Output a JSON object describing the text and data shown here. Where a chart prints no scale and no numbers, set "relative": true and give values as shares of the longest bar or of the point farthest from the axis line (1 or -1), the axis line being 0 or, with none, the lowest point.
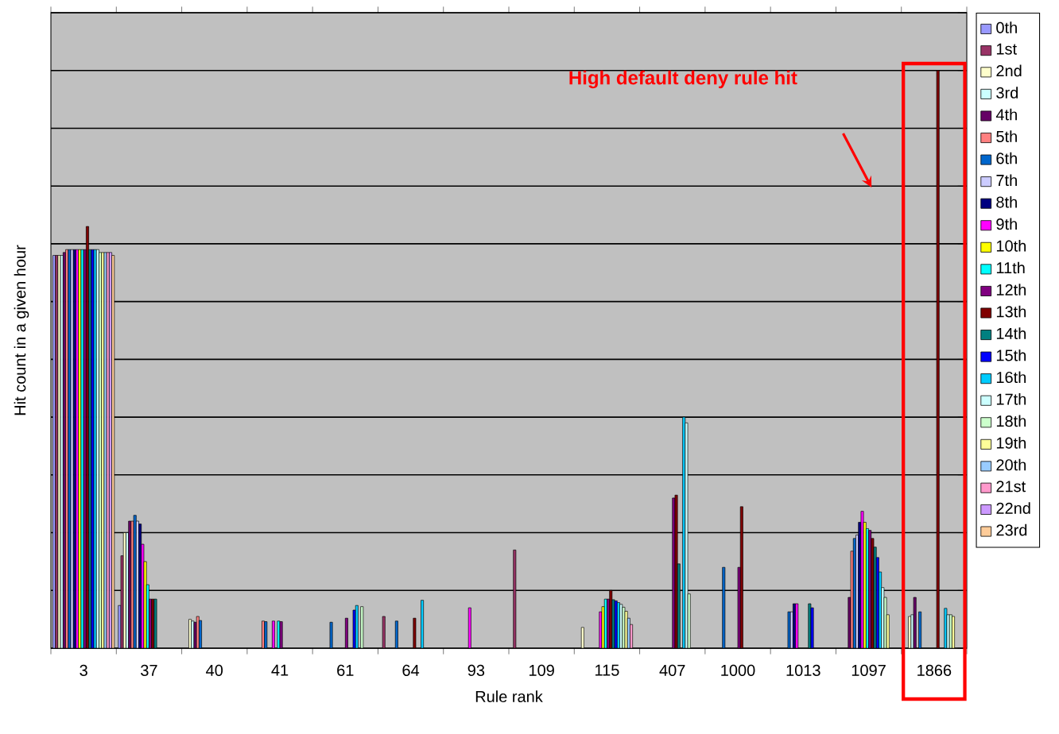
{
  "chart_data": {
    "type": "bar",
    "relative": true,
    "grid": "y",
    "legend": "right",
    "xlabel": "Rule rank",
    "ylabel": "Hit count in a given hour",
    "annotations": [
      "High default deny rule hit"
    ],
    "categories": [
      "3",
      "37",
      "40",
      "41",
      "61",
      "64",
      "93",
      "109",
      "115",
      "407",
      "1000",
      "1013",
      "1097",
      "1866"
    ],
    "series": [
      {
        "name": "0th",
        "color": "#9999ff",
        "values": [
          0.68,
          0.074,
          null,
          null,
          null,
          null,
          null,
          null,
          null,
          null,
          null,
          null,
          null,
          null
        ]
      },
      {
        "name": "1st",
        "color": "#993366",
        "values": [
          0.68,
          0.16,
          null,
          null,
          null,
          0.055,
          null,
          0.17,
          null,
          null,
          null,
          null,
          null,
          null
        ]
      },
      {
        "name": "2nd",
        "color": "#ffffcc",
        "values": [
          0.68,
          0.2,
          0.05,
          null,
          null,
          null,
          null,
          null,
          0.036,
          null,
          null,
          null,
          null,
          0.055
        ]
      },
      {
        "name": "3rd",
        "color": "#ccffff",
        "values": [
          0.68,
          0.2,
          0.047,
          null,
          null,
          null,
          null,
          null,
          null,
          null,
          null,
          null,
          null,
          0.058
        ]
      },
      {
        "name": "4th",
        "color": "#660066",
        "values": [
          0.685,
          0.22,
          0.045,
          null,
          null,
          null,
          null,
          null,
          null,
          null,
          null,
          null,
          0.088,
          0.088
        ]
      },
      {
        "name": "5th",
        "color": "#ff8080",
        "values": [
          0.69,
          0.22,
          0.055,
          0.047,
          null,
          null,
          null,
          null,
          null,
          null,
          null,
          null,
          0.168,
          null
        ]
      },
      {
        "name": "6th",
        "color": "#0066cc",
        "values": [
          0.69,
          0.23,
          0.048,
          0.046,
          0.045,
          0.047,
          null,
          null,
          null,
          null,
          0.14,
          0.063,
          0.19,
          0.063
        ]
      },
      {
        "name": "7th",
        "color": "#ccccff",
        "values": [
          0.69,
          0.22,
          null,
          null,
          null,
          null,
          null,
          null,
          null,
          null,
          null,
          0.063,
          0.196,
          null
        ]
      },
      {
        "name": "8th",
        "color": "#000080",
        "values": [
          0.69,
          0.215,
          null,
          null,
          null,
          null,
          null,
          null,
          null,
          null,
          null,
          0.077,
          0.218,
          null
        ]
      },
      {
        "name": "9th",
        "color": "#ff00ff",
        "values": [
          0.69,
          0.18,
          null,
          0.047,
          null,
          null,
          0.07,
          null,
          0.063,
          null,
          null,
          0.077,
          0.237,
          null
        ]
      },
      {
        "name": "10th",
        "color": "#ffff00",
        "values": [
          0.69,
          0.15,
          null,
          null,
          null,
          null,
          null,
          null,
          0.072,
          null,
          null,
          null,
          0.218,
          null
        ]
      },
      {
        "name": "11th",
        "color": "#00ffff",
        "values": [
          0.69,
          0.11,
          null,
          0.047,
          null,
          null,
          null,
          null,
          0.085,
          null,
          null,
          null,
          0.207,
          null
        ]
      },
      {
        "name": "12th",
        "color": "#800080",
        "values": [
          0.69,
          0.085,
          null,
          0.046,
          0.052,
          null,
          null,
          null,
          0.085,
          0.26,
          0.14,
          null,
          0.204,
          null
        ]
      },
      {
        "name": "13th",
        "color": "#800000",
        "values": [
          0.73,
          0.085,
          null,
          null,
          null,
          0.052,
          null,
          null,
          0.1,
          0.265,
          0.245,
          null,
          0.19,
          1.0
        ]
      },
      {
        "name": "14th",
        "color": "#008080",
        "values": [
          0.69,
          0.085,
          null,
          null,
          null,
          null,
          null,
          null,
          0.084,
          0.146,
          null,
          0.077,
          0.175,
          null
        ]
      },
      {
        "name": "15th",
        "color": "#0000ff",
        "values": [
          0.69,
          null,
          null,
          null,
          0.066,
          null,
          null,
          null,
          0.082,
          null,
          null,
          0.07,
          0.157,
          null
        ]
      },
      {
        "name": "16th",
        "color": "#00ccff",
        "values": [
          0.69,
          null,
          null,
          null,
          0.074,
          0.083,
          null,
          null,
          0.079,
          0.4,
          null,
          null,
          0.132,
          0.069
        ]
      },
      {
        "name": "17th",
        "color": "#ccffff",
        "values": [
          0.69,
          null,
          null,
          null,
          null,
          null,
          null,
          null,
          0.076,
          0.39,
          null,
          null,
          0.105,
          0.058
        ]
      },
      {
        "name": "18th",
        "color": "#ccffcc",
        "values": [
          0.685,
          null,
          null,
          null,
          0.072,
          null,
          null,
          null,
          0.071,
          0.094,
          null,
          null,
          0.088,
          0.058
        ]
      },
      {
        "name": "19th",
        "color": "#ffff99",
        "values": [
          0.685,
          null,
          null,
          null,
          null,
          null,
          null,
          null,
          0.064,
          null,
          null,
          null,
          0.058,
          0.055
        ]
      },
      {
        "name": "20th",
        "color": "#99ccff",
        "values": [
          0.685,
          null,
          null,
          null,
          null,
          null,
          null,
          null,
          0.052,
          null,
          null,
          null,
          null,
          null
        ]
      },
      {
        "name": "21st",
        "color": "#ff99cc",
        "values": [
          0.685,
          null,
          null,
          null,
          null,
          null,
          null,
          null,
          0.041,
          null,
          null,
          null,
          null,
          null
        ]
      },
      {
        "name": "22nd",
        "color": "#cc99ff",
        "values": [
          0.685,
          null,
          null,
          null,
          null,
          null,
          null,
          null,
          null,
          null,
          null,
          null,
          null,
          null
        ]
      },
      {
        "name": "23rd",
        "color": "#ffcc99",
        "values": [
          0.68,
          null,
          null,
          null,
          null,
          null,
          null,
          null,
          null,
          null,
          null,
          null,
          null,
          null
        ]
      }
    ]
  }
}
